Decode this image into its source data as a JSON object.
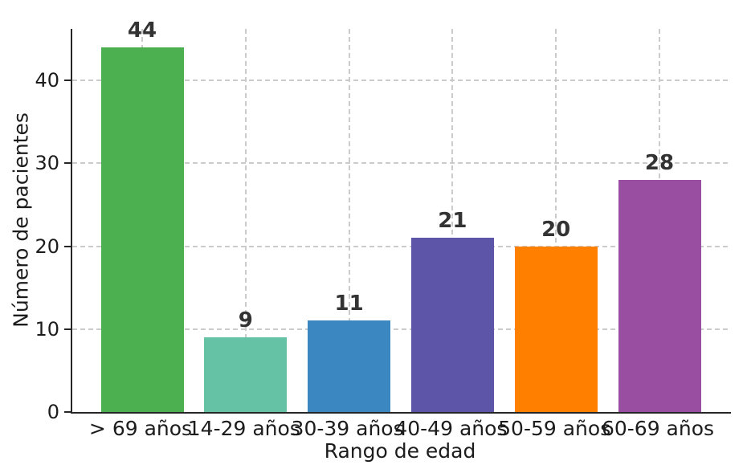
{
  "chart_data": {
    "type": "bar",
    "title": "",
    "categories": [
      "> 69 años",
      "14-29 años",
      "30-39 años",
      "40-49 años",
      "50-59 años",
      "60-69 años"
    ],
    "values": [
      44,
      9,
      11,
      21,
      20,
      28
    ],
    "bar_colors": [
      "#4caf50",
      "#66c2a5",
      "#3a87c1",
      "#5d55a7",
      "#ff8000",
      "#9a4ea2"
    ],
    "xlabel": "Rango de edad",
    "ylabel": "Número de pacientes",
    "yticks": [
      0,
      10,
      20,
      30,
      40
    ],
    "ylim": [
      0,
      46.2
    ],
    "grid": true,
    "grid_style": "dashed",
    "legend": "none",
    "colors": {
      "grid": "#cbcbcb",
      "spine": "#262626",
      "tick_text": "#1c1c1c",
      "value_text": "#333333",
      "background": "#ffffff"
    }
  }
}
